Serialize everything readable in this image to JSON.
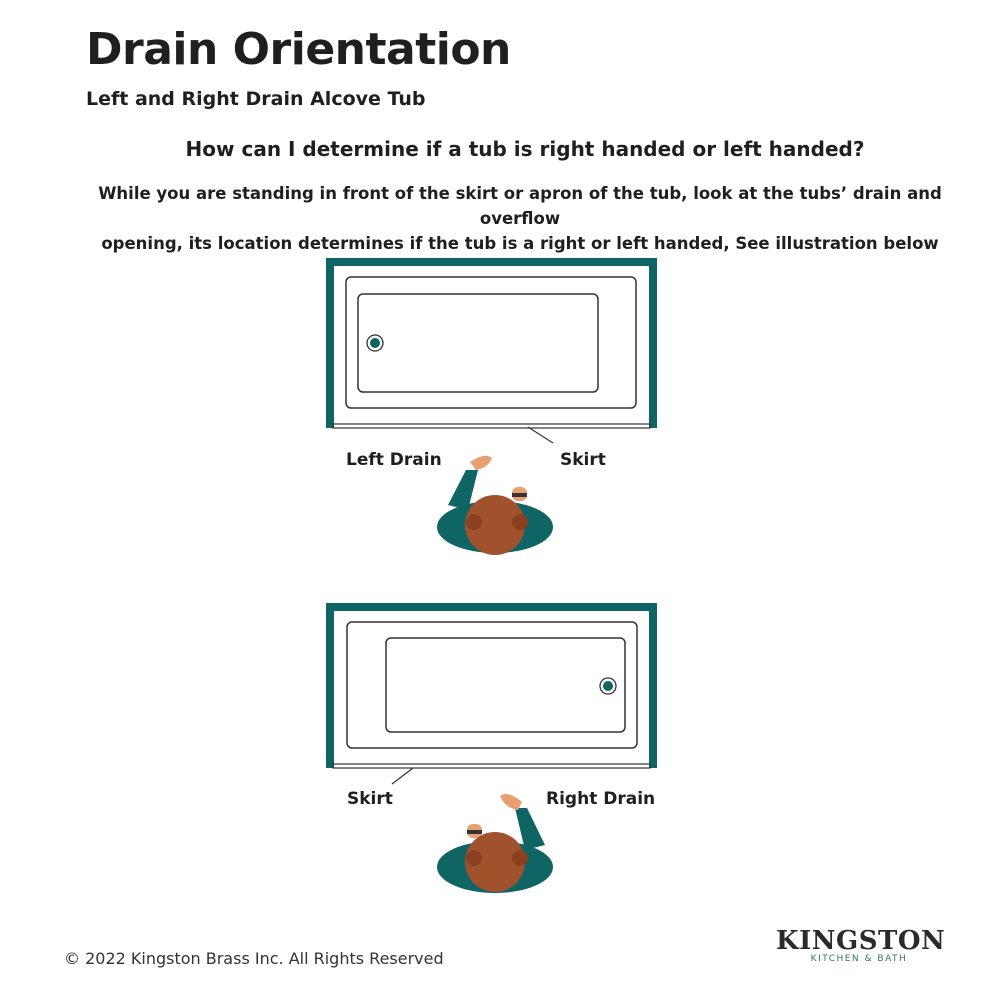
{
  "title": "Drain Orientation",
  "subtitle": "Left and Right Drain Alcove Tub",
  "question": "How can I determine if a tub is right handed or left handed?",
  "body_lines": [
    "While you are standing in front of the skirt or apron of the tub, look at the tubs’ drain and overflow",
    "opening, its location determines if the tub is a right or left handed, See illustration below"
  ],
  "diagram_top": {
    "drain_label": "Left Drain",
    "skirt_label": "Skirt",
    "drain_side": "left"
  },
  "diagram_bottom": {
    "drain_label": "Right Drain",
    "skirt_label": "Skirt",
    "drain_side": "right"
  },
  "footer": {
    "copyright": "© 2022 Kingston Brass Inc.  All Rights Reserved"
  },
  "logo": {
    "wordmark": "KINGSTON",
    "tagline": "KITCHEN & BATH"
  },
  "colors": {
    "teal": "#0f6464",
    "skin": "#a0522d",
    "hand": "#e8a070"
  }
}
